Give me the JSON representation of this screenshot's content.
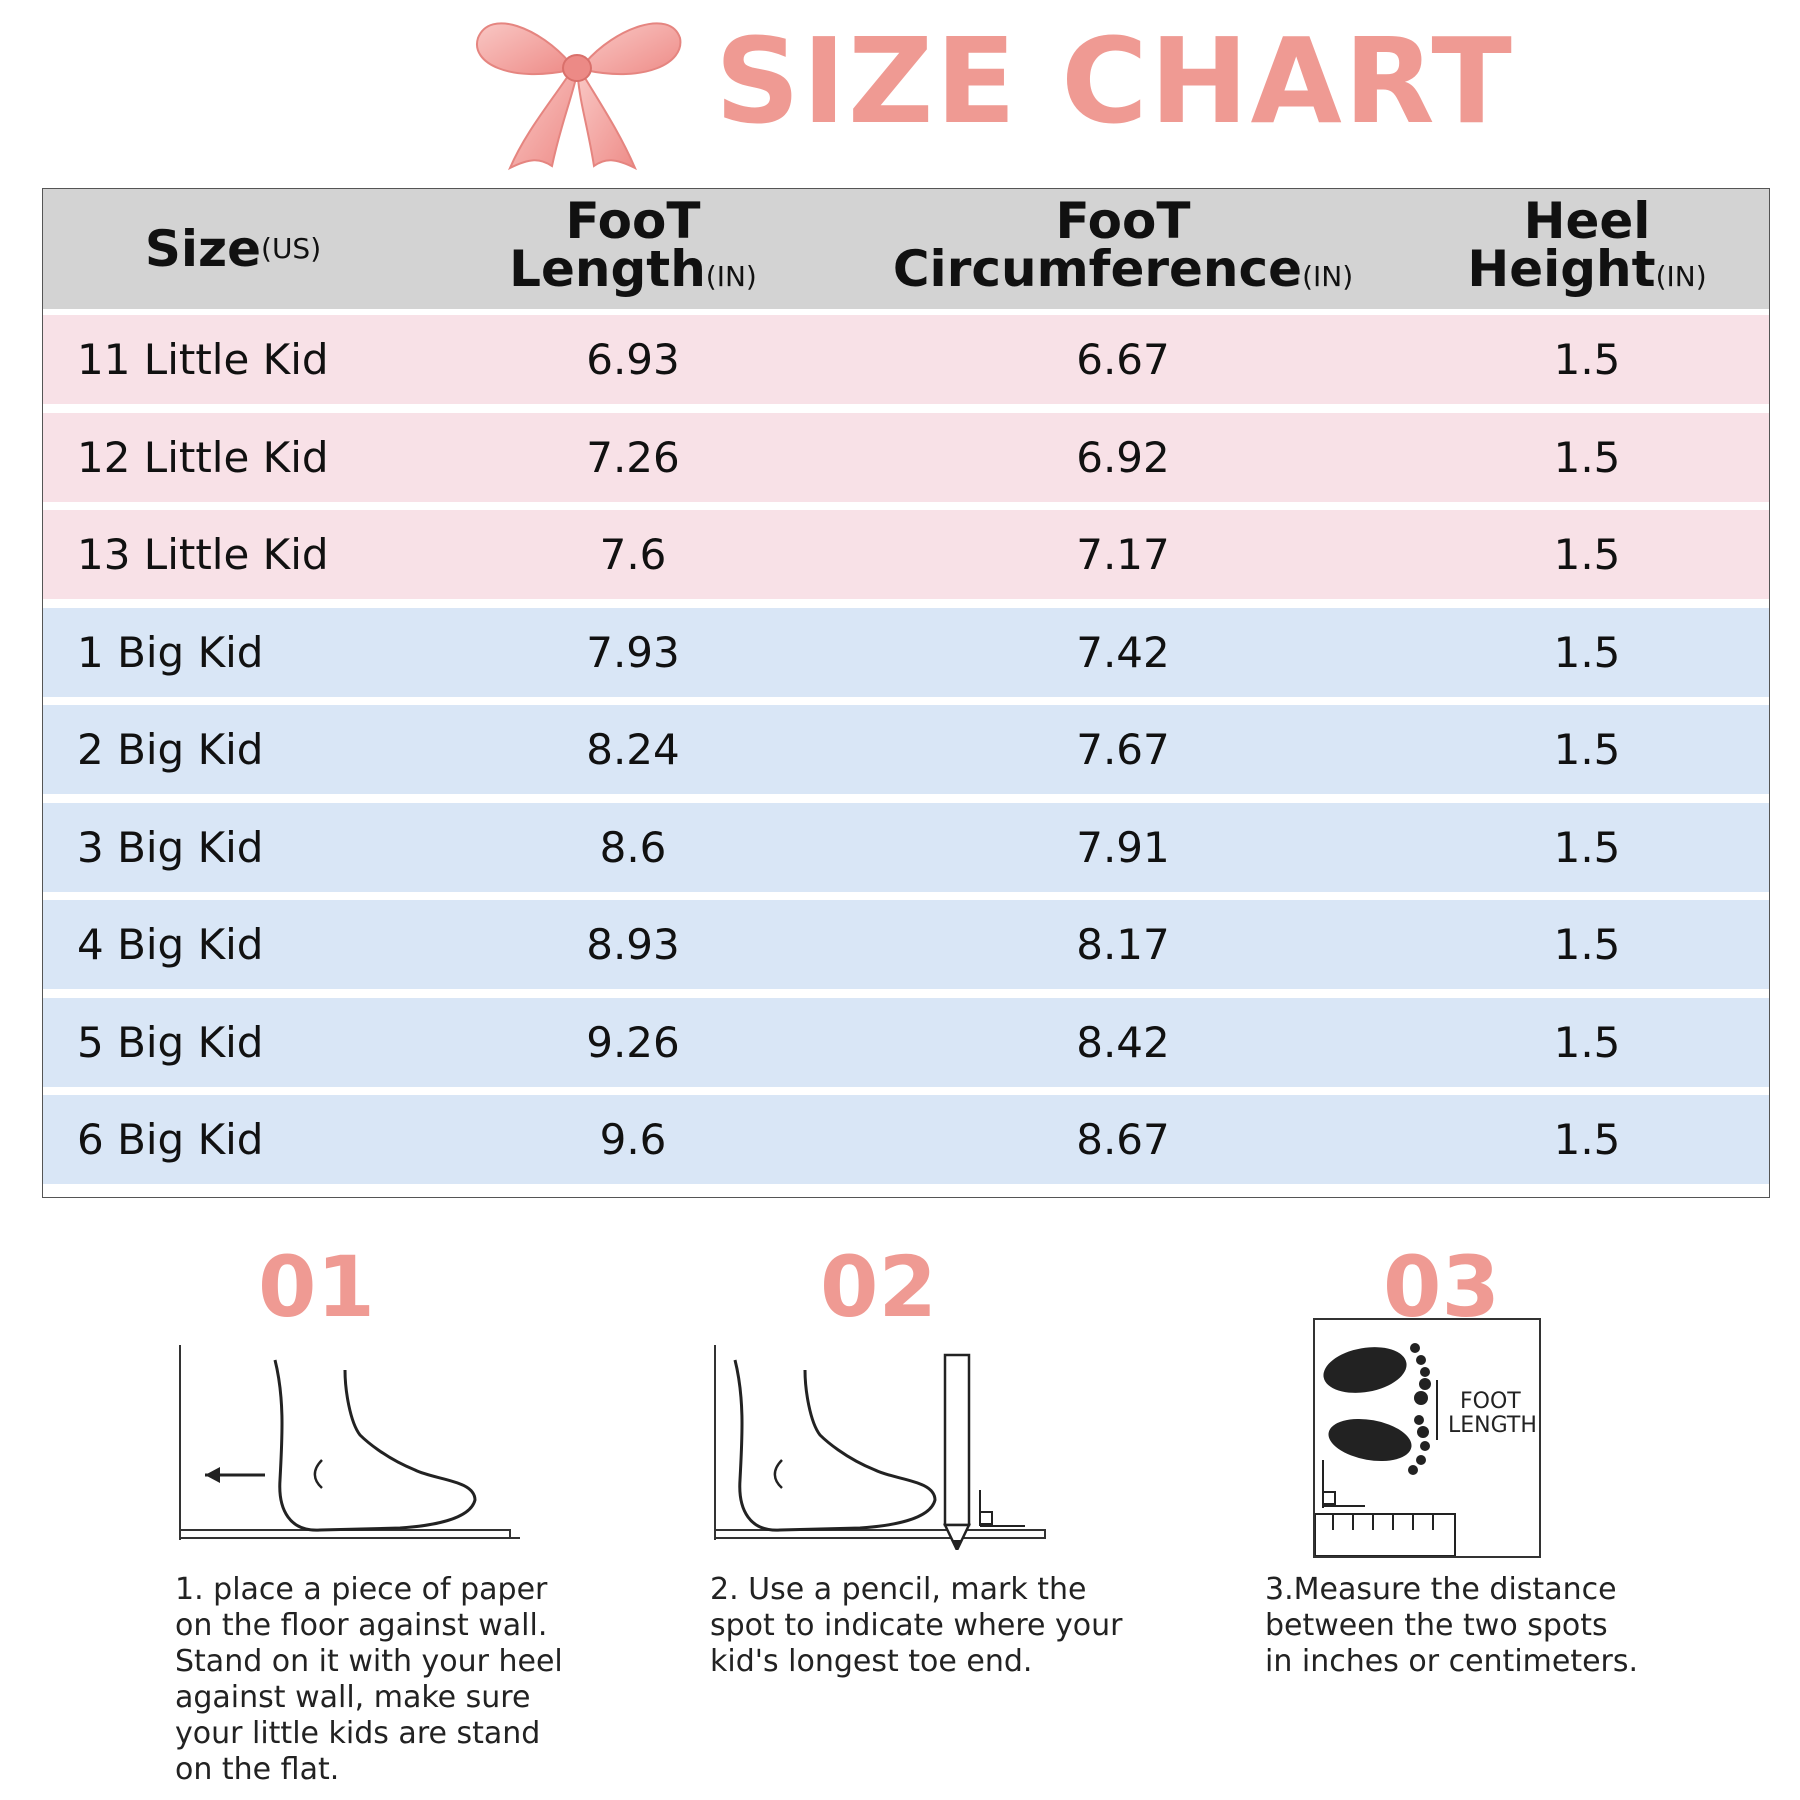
{
  "header": {
    "title": "SIZE CHART"
  },
  "table": {
    "columns": [
      {
        "line1": "Size",
        "line2": "",
        "unit": "(US)"
      },
      {
        "line1": "FooT",
        "line2": "Length",
        "unit": "(IN)"
      },
      {
        "line1": "FooT",
        "line2": "Circumference",
        "unit": "(IN)"
      },
      {
        "line1": "Heel",
        "line2": "Height",
        "unit": "(IN)"
      }
    ],
    "rows": [
      {
        "size": "11 Little Kid",
        "length": "6.93",
        "circumference": "6.67",
        "heel": "1.5",
        "group": "pink"
      },
      {
        "size": "12 Little Kid",
        "length": "7.26",
        "circumference": "6.92",
        "heel": "1.5",
        "group": "pink"
      },
      {
        "size": "13 Little Kid",
        "length": "7.6",
        "circumference": "7.17",
        "heel": "1.5",
        "group": "pink"
      },
      {
        "size": "1 Big Kid",
        "length": "7.93",
        "circumference": "7.42",
        "heel": "1.5",
        "group": "blue"
      },
      {
        "size": "2 Big Kid",
        "length": "8.24",
        "circumference": "7.67",
        "heel": "1.5",
        "group": "blue"
      },
      {
        "size": "3 Big Kid",
        "length": "8.6",
        "circumference": "7.91",
        "heel": "1.5",
        "group": "blue"
      },
      {
        "size": "4 Big Kid",
        "length": "8.93",
        "circumference": "8.17",
        "heel": "1.5",
        "group": "blue"
      },
      {
        "size": "5 Big Kid",
        "length": "9.26",
        "circumference": "8.42",
        "heel": "1.5",
        "group": "blue"
      },
      {
        "size": "6 Big Kid",
        "length": "9.6",
        "circumference": "8.67",
        "heel": "1.5",
        "group": "blue"
      }
    ]
  },
  "steps": [
    {
      "number": "01",
      "text": "1. place a piece of paper\non the floor against wall.\nStand on it with your heel\nagainst wall, make sure\nyour little kids are stand\non the flat."
    },
    {
      "number": "02",
      "text": "2. Use a pencil, mark the\nspot to indicate where your\nkid's longest toe end."
    },
    {
      "number": "03",
      "text": "3.Measure the distance\nbetween the two spots\nin inches or centimeters.",
      "diagram_label_1": "FOOT",
      "diagram_label_2": "LENGTH"
    }
  ],
  "colors": {
    "accent": "#ef9a93",
    "pink_row": "#f8e1e7",
    "blue_row": "#d9e6f6",
    "header_bg": "#d3d3d3"
  }
}
